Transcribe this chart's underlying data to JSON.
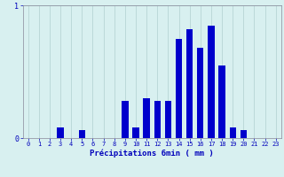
{
  "hours": [
    0,
    1,
    2,
    3,
    4,
    5,
    6,
    7,
    8,
    9,
    10,
    11,
    12,
    13,
    14,
    15,
    16,
    17,
    18,
    19,
    20,
    21,
    22,
    23
  ],
  "values": [
    0.0,
    0.0,
    0.0,
    0.08,
    0.0,
    0.06,
    0.0,
    0.0,
    0.0,
    0.28,
    0.08,
    0.3,
    0.28,
    0.28,
    0.75,
    0.82,
    0.68,
    0.85,
    0.55,
    0.08,
    0.06,
    0.0,
    0.0,
    0.0
  ],
  "bar_color": "#0000cc",
  "background_color": "#d8f0f0",
  "grid_color": "#b0d0d0",
  "axis_color": "#888899",
  "text_color": "#0000bb",
  "xlabel": "Précipitations 6min ( mm )",
  "ylim": [
    0,
    1.0
  ],
  "yticks": [
    0,
    1
  ],
  "figsize": [
    3.2,
    2.0
  ],
  "dpi": 100
}
